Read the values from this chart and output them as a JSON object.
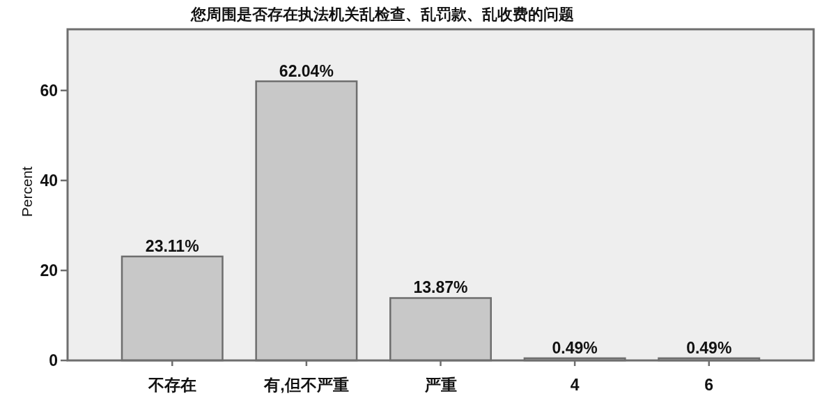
{
  "chart_data": {
    "type": "bar",
    "title": "您周围是否存在执法机关乱检查、乱罚款、乱收费的问题",
    "ylabel": "Percent",
    "categories": [
      "不存在",
      "有,但不严重",
      "严重",
      "4",
      "6"
    ],
    "values": [
      23.11,
      62.04,
      13.87,
      0.49,
      0.49
    ],
    "value_labels": [
      "23.11%",
      "62.04%",
      "13.87%",
      "0.49%",
      "0.49%"
    ],
    "color": "#c8c8c8",
    "ylim": [
      0,
      73.6
    ],
    "yticks": [
      0,
      20,
      40,
      60
    ]
  }
}
